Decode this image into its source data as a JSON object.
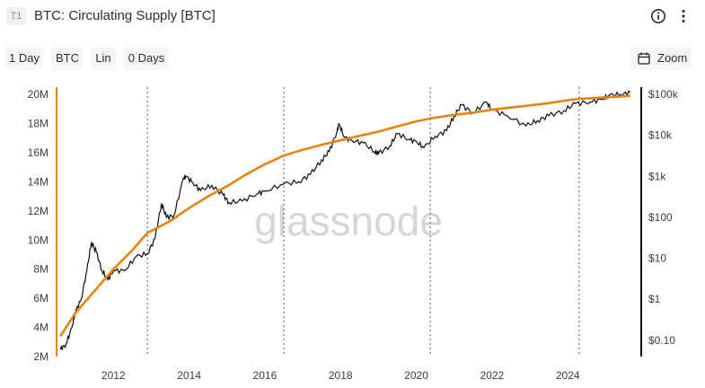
{
  "header": {
    "badge": "T1",
    "title": "BTC: Circulating Supply [BTC]"
  },
  "toolbar": {
    "resolution": "1 Day",
    "asset": "BTC",
    "scale": "Lin",
    "window": "0 Days",
    "zoom": "Zoom"
  },
  "watermark": "glassnode",
  "colors": {
    "supply": "#e8830f",
    "price": "#111111",
    "axis_left": "#e8830f",
    "axis_right": "#111111",
    "event_line": "#555555"
  },
  "chart_data": {
    "type": "line",
    "title": "BTC: Circulating Supply [BTC]",
    "x_range": [
      2010.5,
      2025.75
    ],
    "x_ticks": [
      "2012",
      "2014",
      "2016",
      "2018",
      "2020",
      "2022",
      "2024"
    ],
    "x_tick_values": [
      2012,
      2014,
      2016,
      2018,
      2020,
      2022,
      2024
    ],
    "y_left": {
      "range": [
        2000000,
        20500000
      ],
      "ticks": [
        "2M",
        "4M",
        "6M",
        "8M",
        "10M",
        "12M",
        "14M",
        "16M",
        "18M",
        "20M"
      ],
      "tick_values": [
        2000000,
        4000000,
        6000000,
        8000000,
        10000000,
        12000000,
        14000000,
        16000000,
        18000000,
        20000000
      ]
    },
    "y_right": {
      "scale": "log",
      "range": [
        0.04,
        150000
      ],
      "ticks": [
        "$0.10",
        "$1",
        "$10",
        "$100",
        "$1k",
        "$10k",
        "$100k"
      ],
      "tick_values": [
        0.1,
        1,
        10,
        100,
        1000,
        10000,
        100000
      ]
    },
    "event_lines_x": [
      2012.9,
      2016.5,
      2020.37,
      2024.3
    ],
    "grid": false,
    "series": [
      {
        "name": "Circulating Supply",
        "axis": "left",
        "x": [
          2010.6,
          2011.0,
          2011.5,
          2012.0,
          2012.5,
          2012.9,
          2013.5,
          2014.0,
          2014.5,
          2015.0,
          2015.5,
          2016.0,
          2016.5,
          2017.0,
          2017.5,
          2018.0,
          2018.5,
          2019.0,
          2019.5,
          2020.0,
          2020.37,
          2021.0,
          2021.5,
          2022.0,
          2022.5,
          2023.0,
          2023.5,
          2024.0,
          2024.3,
          2025.0,
          2025.65
        ],
        "y": [
          3400000,
          5000000,
          6500000,
          8000000,
          9300000,
          10500000,
          11300000,
          12200000,
          13000000,
          13700000,
          14500000,
          15200000,
          15800000,
          16200000,
          16550000,
          16850000,
          17150000,
          17450000,
          17800000,
          18150000,
          18350000,
          18600000,
          18750000,
          18950000,
          19100000,
          19250000,
          19400000,
          19600000,
          19700000,
          19800000,
          19900000
        ]
      },
      {
        "name": "Price",
        "axis": "right",
        "x": [
          2010.6,
          2010.75,
          2010.9,
          2011.0,
          2011.15,
          2011.3,
          2011.42,
          2011.55,
          2011.7,
          2011.85,
          2012.0,
          2012.3,
          2012.6,
          2012.9,
          2013.1,
          2013.27,
          2013.4,
          2013.6,
          2013.85,
          2013.92,
          2014.1,
          2014.3,
          2014.6,
          2014.9,
          2015.05,
          2015.4,
          2015.8,
          2016.0,
          2016.5,
          2016.9,
          2017.2,
          2017.5,
          2017.7,
          2017.9,
          2017.96,
          2018.1,
          2018.3,
          2018.6,
          2018.9,
          2019.0,
          2019.3,
          2019.5,
          2019.8,
          2020.0,
          2020.2,
          2020.5,
          2020.8,
          2021.0,
          2021.2,
          2021.5,
          2021.85,
          2022.0,
          2022.4,
          2022.9,
          2023.2,
          2023.5,
          2023.9,
          2024.2,
          2024.6,
          2024.9,
          2025.1,
          2025.4,
          2025.65
        ],
        "y": [
          0.06,
          0.08,
          0.2,
          0.5,
          1.0,
          5,
          25,
          14,
          5,
          3,
          5,
          5,
          11,
          13,
          30,
          220,
          100,
          110,
          900,
          1000,
          700,
          450,
          600,
          350,
          230,
          250,
          380,
          430,
          650,
          740,
          1100,
          2500,
          4000,
          12000,
          19000,
          9000,
          7500,
          6500,
          4000,
          3600,
          5500,
          11000,
          8000,
          7000,
          5000,
          9500,
          13000,
          30000,
          55000,
          35000,
          65000,
          42000,
          30000,
          17000,
          23000,
          30000,
          40000,
          60000,
          65000,
          75000,
          95000,
          100000,
          110000
        ]
      }
    ]
  }
}
